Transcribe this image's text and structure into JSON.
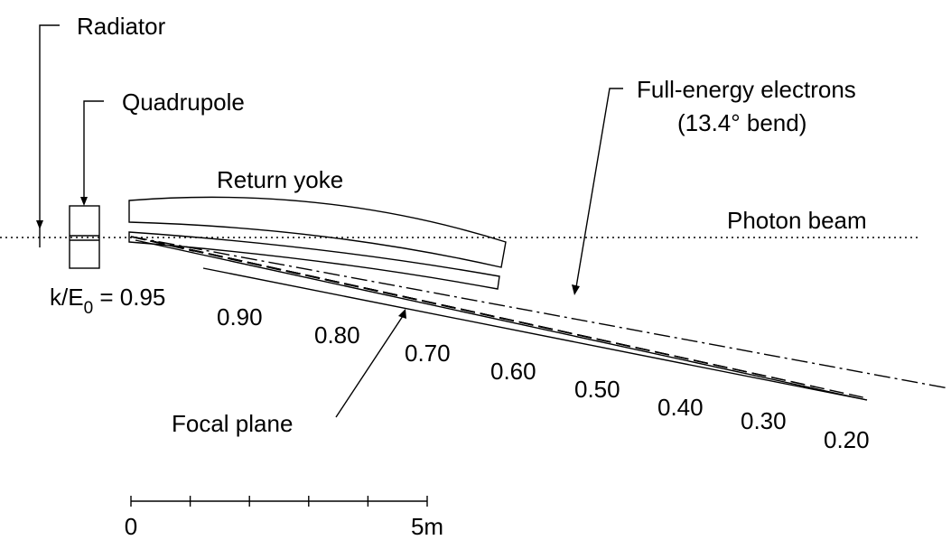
{
  "labels": {
    "radiator": "Radiator",
    "quadrupole": "Quadrupole",
    "return_yoke": "Return yoke",
    "photon_beam": "Photon beam",
    "full_energy_line1": "Full-energy electrons",
    "full_energy_line2": "(13.4° bend)",
    "focal_plane": "Focal plane"
  },
  "k_label": {
    "prefix": "k/E",
    "sub": "0",
    "suffix": " = 0.95"
  },
  "energy_labels": [
    "0.90",
    "0.80",
    "0.70",
    "0.60",
    "0.50",
    "0.40",
    "0.30",
    "0.20"
  ],
  "scale": {
    "start": "0",
    "end": "5m"
  }
}
